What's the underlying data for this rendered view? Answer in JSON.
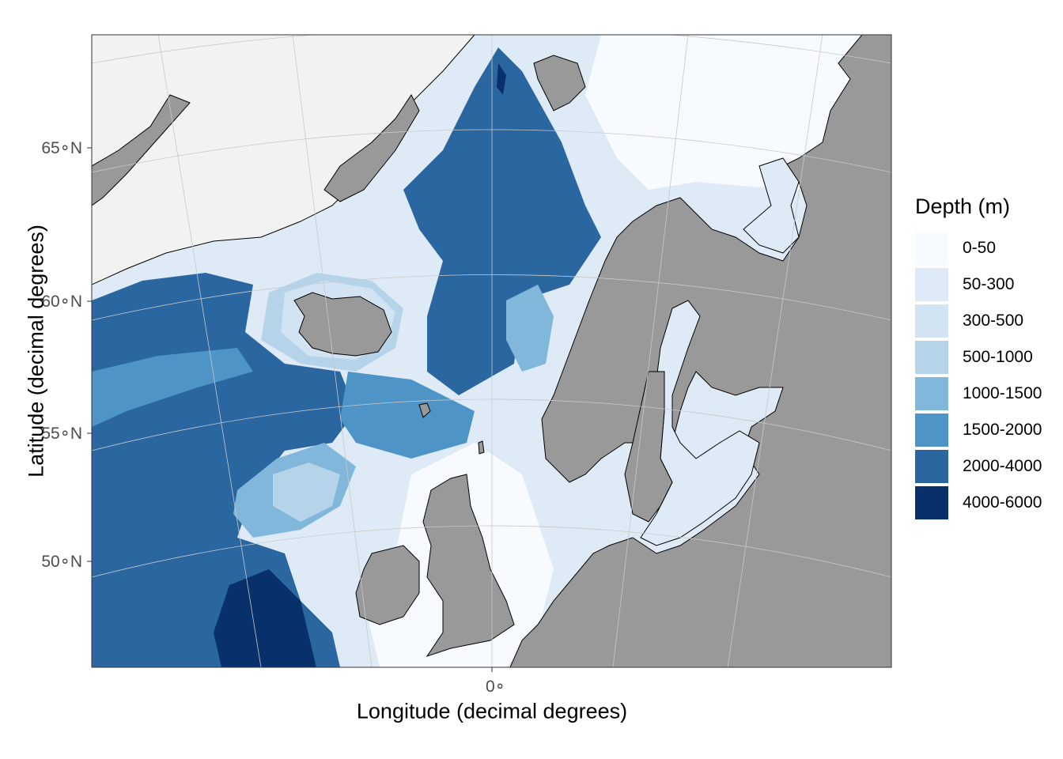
{
  "axes": {
    "xlabel": "Longitude (decimal degrees)",
    "ylabel": "Latitude (decimal degrees)",
    "y_ticks": [
      "65∘N",
      "60∘N",
      "55∘N",
      "50∘N"
    ],
    "x_ticks": [
      "0∘"
    ]
  },
  "legend": {
    "title": "Depth (m)",
    "items": [
      {
        "label": "0-50",
        "color": "#f7fbff"
      },
      {
        "label": "50-300",
        "color": "#deebf7"
      },
      {
        "label": "300-500",
        "color": "#d2e3f3"
      },
      {
        "label": "500-1000",
        "color": "#b6d4e9"
      },
      {
        "label": "1000-1500",
        "color": "#80b7da"
      },
      {
        "label": "1500-2000",
        "color": "#4f94c7"
      },
      {
        "label": "2000-4000",
        "color": "#2a67a1"
      },
      {
        "label": "4000-6000",
        "color": "#08306b"
      }
    ]
  },
  "colors": {
    "land": "#999999",
    "greenland_ice": "#f2f2f2",
    "graticule": "#c8c8c8",
    "coast": "#000000"
  }
}
